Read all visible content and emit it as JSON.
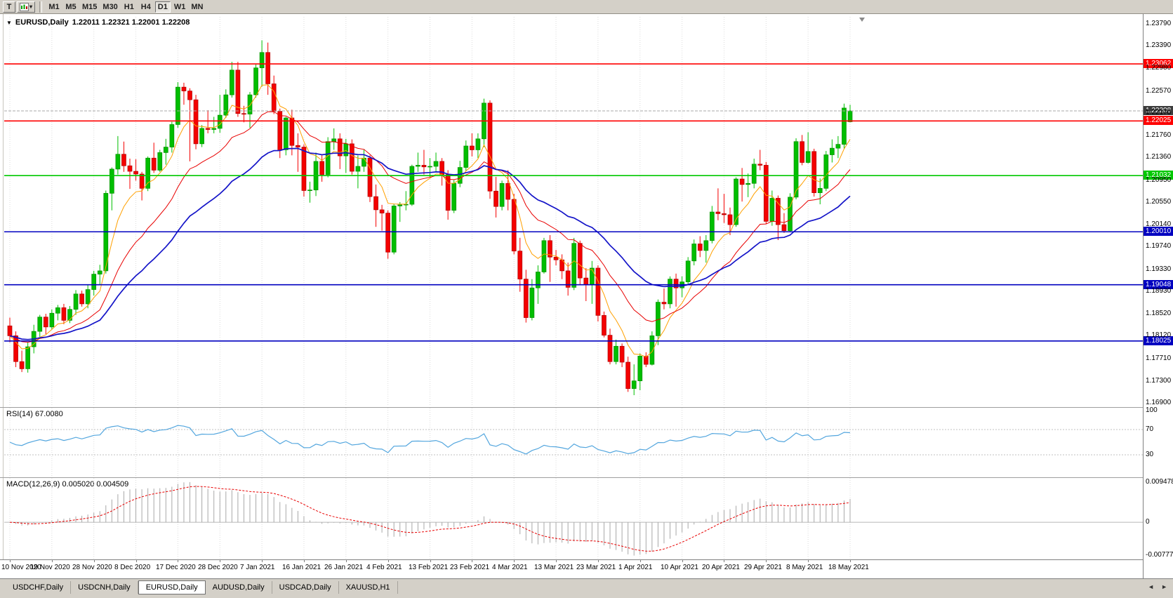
{
  "toolbar": {
    "t_button": "T",
    "template_dropdown_glyph": "▾",
    "timeframes": [
      "M1",
      "M5",
      "M15",
      "M30",
      "H1",
      "H4",
      "D1",
      "W1",
      "MN"
    ],
    "active_timeframe": "D1"
  },
  "chart": {
    "menu_glyph": "▼",
    "title_symbol": "EURUSD,Daily",
    "title_ohlc": "1.22011 1.22321 1.22001 1.22208"
  },
  "chart_data": {
    "type": "candlestick",
    "symbol": "EURUSD",
    "timeframe": "Daily",
    "title": "EURUSD,Daily 1.22011 1.22321 1.22001 1.22208",
    "ohlc_display": {
      "open": "1.22011",
      "high": "1.22321",
      "low": "1.22001",
      "close": "1.22208"
    },
    "price_axis_range": {
      "top": 1.2379,
      "bottom": 1.169
    },
    "price_axis_labels": [
      "1.23790",
      "1.23390",
      "1.22980",
      "1.22570",
      "1.22170",
      "1.21760",
      "1.21360",
      "1.20950",
      "1.20550",
      "1.20140",
      "1.19740",
      "1.19330",
      "1.18930",
      "1.18520",
      "1.18120",
      "1.17710",
      "1.17300",
      "1.16900"
    ],
    "date_labels": [
      "10 Nov 2020",
      "19 Nov 2020",
      "28 Nov 2020",
      "8 Dec 2020",
      "17 Dec 2020",
      "28 Dec 2020",
      "7 Jan 2021",
      "16 Jan 2021",
      "26 Jan 2021",
      "4 Feb 2021",
      "13 Feb 2021",
      "23 Feb 2021",
      "4 Mar 2021",
      "13 Mar 2021",
      "23 Mar 2021",
      "1 Apr 2021",
      "10 Apr 2021",
      "20 Apr 2021",
      "29 Apr 2021",
      "8 May 2021",
      "18 May 2021"
    ],
    "bars_per_label": 7,
    "colors": {
      "candle_up": "#00BE00",
      "candle_up_border": "#089000",
      "candle_down": "#F40000",
      "candle_down_border": "#B00000",
      "grid": "#DCDCDC"
    },
    "candles": [
      [
        1.183,
        1.1845,
        1.18,
        1.1812
      ],
      [
        1.1812,
        1.182,
        1.1755,
        1.1765
      ],
      [
        1.1765,
        1.1785,
        1.1746,
        1.1752
      ],
      [
        1.1752,
        1.18,
        1.1745,
        1.1792
      ],
      [
        1.1792,
        1.1832,
        1.178,
        1.182
      ],
      [
        1.182,
        1.185,
        1.181,
        1.1846
      ],
      [
        1.1846,
        1.1852,
        1.1815,
        1.1828
      ],
      [
        1.1828,
        1.186,
        1.1823,
        1.1853
      ],
      [
        1.1853,
        1.1868,
        1.184,
        1.1863
      ],
      [
        1.1863,
        1.187,
        1.1833,
        1.184
      ],
      [
        1.184,
        1.1866,
        1.1835,
        1.186
      ],
      [
        1.186,
        1.1895,
        1.185,
        1.1888
      ],
      [
        1.1888,
        1.1894,
        1.1865,
        1.187
      ],
      [
        1.187,
        1.1905,
        1.1862,
        1.1896
      ],
      [
        1.1896,
        1.193,
        1.1885,
        1.1924
      ],
      [
        1.1924,
        1.1941,
        1.1905,
        1.193
      ],
      [
        1.193,
        1.2076,
        1.1925,
        1.2071
      ],
      [
        1.2071,
        1.2118,
        1.204,
        1.2115
      ],
      [
        1.2115,
        1.2175,
        1.2105,
        1.2142
      ],
      [
        1.2142,
        1.2165,
        1.211,
        1.2121
      ],
      [
        1.2121,
        1.2134,
        1.2079,
        1.2111
      ],
      [
        1.2111,
        1.2133,
        1.2094,
        1.2106
      ],
      [
        1.2106,
        1.211,
        1.2058,
        1.208
      ],
      [
        1.208,
        1.2138,
        1.2075,
        1.2135
      ],
      [
        1.2135,
        1.2163,
        1.2108,
        1.2113
      ],
      [
        1.2113,
        1.215,
        1.211,
        1.2145
      ],
      [
        1.2145,
        1.217,
        1.2123,
        1.2155
      ],
      [
        1.2155,
        1.2201,
        1.2145,
        1.2196
      ],
      [
        1.2196,
        1.2273,
        1.219,
        1.2264
      ],
      [
        1.2264,
        1.2272,
        1.2232,
        1.2257
      ],
      [
        1.2257,
        1.2262,
        1.2129,
        1.2241
      ],
      [
        1.2241,
        1.225,
        1.2151,
        1.2161
      ],
      [
        1.2161,
        1.2195,
        1.2155,
        1.2189
      ],
      [
        1.2189,
        1.2222,
        1.218,
        1.2187
      ],
      [
        1.2187,
        1.221,
        1.218,
        1.2189
      ],
      [
        1.2189,
        1.225,
        1.2181,
        1.2213
      ],
      [
        1.2213,
        1.226,
        1.2208,
        1.225
      ],
      [
        1.225,
        1.231,
        1.2245,
        1.2295
      ],
      [
        1.2295,
        1.231,
        1.221,
        1.2216
      ],
      [
        1.2216,
        1.223,
        1.22,
        1.2215
      ],
      [
        1.2215,
        1.2255,
        1.219,
        1.225
      ],
      [
        1.225,
        1.2305,
        1.2245,
        1.2299
      ],
      [
        1.2299,
        1.2349,
        1.2265,
        1.2327
      ],
      [
        1.2327,
        1.2345,
        1.225,
        1.227
      ],
      [
        1.227,
        1.2285,
        1.2215,
        1.222
      ],
      [
        1.222,
        1.2225,
        1.2135,
        1.215
      ],
      [
        1.215,
        1.221,
        1.214,
        1.2208
      ],
      [
        1.2208,
        1.2223,
        1.214,
        1.2158
      ],
      [
        1.2158,
        1.218,
        1.211,
        1.2155
      ],
      [
        1.2155,
        1.216,
        1.2065,
        1.2076
      ],
      [
        1.2076,
        1.2092,
        1.2054,
        1.2077
      ],
      [
        1.2077,
        1.2145,
        1.2066,
        1.2129
      ],
      [
        1.2129,
        1.214,
        1.2092,
        1.2105
      ],
      [
        1.2105,
        1.2173,
        1.21,
        1.2165
      ],
      [
        1.2165,
        1.2189,
        1.215,
        1.217
      ],
      [
        1.217,
        1.218,
        1.2115,
        1.2139
      ],
      [
        1.2139,
        1.217,
        1.2108,
        1.2161
      ],
      [
        1.2161,
        1.2169,
        1.2105,
        1.2111
      ],
      [
        1.2111,
        1.214,
        1.208,
        1.212
      ],
      [
        1.212,
        1.215,
        1.211,
        1.2135
      ],
      [
        1.2135,
        1.214,
        1.2055,
        1.2065
      ],
      [
        1.2065,
        1.2087,
        1.201,
        1.2041
      ],
      [
        1.2041,
        1.205,
        1.2003,
        1.2035
      ],
      [
        1.2035,
        1.204,
        1.1952,
        1.1964
      ],
      [
        1.1964,
        1.2052,
        1.196,
        1.2048
      ],
      [
        1.2048,
        1.2055,
        1.2019,
        1.205
      ],
      [
        1.205,
        1.2075,
        1.204,
        1.2051
      ],
      [
        1.2051,
        1.2123,
        1.2048,
        1.212
      ],
      [
        1.212,
        1.2145,
        1.211,
        1.2122
      ],
      [
        1.2122,
        1.215,
        1.2105,
        1.2119
      ],
      [
        1.2119,
        1.2135,
        1.21,
        1.212
      ],
      [
        1.212,
        1.2145,
        1.211,
        1.2129
      ],
      [
        1.2129,
        1.2135,
        1.2085,
        1.2105
      ],
      [
        1.2105,
        1.2113,
        1.2023,
        1.204
      ],
      [
        1.204,
        1.2095,
        1.2035,
        1.2089
      ],
      [
        1.2089,
        1.213,
        1.2082,
        1.2118
      ],
      [
        1.2118,
        1.2167,
        1.2112,
        1.2157
      ],
      [
        1.2157,
        1.218,
        1.2138,
        1.215
      ],
      [
        1.215,
        1.218,
        1.2135,
        1.217
      ],
      [
        1.217,
        1.2243,
        1.2155,
        1.2235
      ],
      [
        1.2235,
        1.224,
        1.2061,
        1.2075
      ],
      [
        1.2075,
        1.2101,
        1.2027,
        1.2047
      ],
      [
        1.2047,
        1.2094,
        1.204,
        1.2089
      ],
      [
        1.2089,
        1.2113,
        1.204,
        1.206
      ],
      [
        1.206,
        1.207,
        1.196,
        1.1966
      ],
      [
        1.1966,
        1.199,
        1.1892,
        1.1915
      ],
      [
        1.1915,
        1.1932,
        1.1836,
        1.1845
      ],
      [
        1.1845,
        1.1915,
        1.184,
        1.1899
      ],
      [
        1.1899,
        1.194,
        1.187,
        1.1928
      ],
      [
        1.1928,
        1.199,
        1.1925,
        1.1985
      ],
      [
        1.1985,
        1.1995,
        1.191,
        1.1955
      ],
      [
        1.1955,
        1.1968,
        1.194,
        1.195
      ],
      [
        1.195,
        1.196,
        1.1915,
        1.193
      ],
      [
        1.193,
        1.1945,
        1.1885,
        1.19
      ],
      [
        1.19,
        1.199,
        1.1895,
        1.198
      ],
      [
        1.198,
        1.1985,
        1.1905,
        1.1917
      ],
      [
        1.1917,
        1.1935,
        1.1875,
        1.1905
      ],
      [
        1.1905,
        1.1948,
        1.187,
        1.1935
      ],
      [
        1.1935,
        1.194,
        1.1838,
        1.1849
      ],
      [
        1.1849,
        1.1856,
        1.1809,
        1.1813
      ],
      [
        1.1813,
        1.1825,
        1.176,
        1.1765
      ],
      [
        1.1765,
        1.1805,
        1.176,
        1.1793
      ],
      [
        1.1793,
        1.1798,
        1.1755,
        1.1764
      ],
      [
        1.1764,
        1.1774,
        1.171,
        1.1716
      ],
      [
        1.1716,
        1.176,
        1.1704,
        1.173
      ],
      [
        1.173,
        1.178,
        1.1713,
        1.1775
      ],
      [
        1.1775,
        1.1782,
        1.1755,
        1.176
      ],
      [
        1.176,
        1.182,
        1.1758,
        1.1812
      ],
      [
        1.1812,
        1.1878,
        1.1795,
        1.1873
      ],
      [
        1.1873,
        1.1898,
        1.186,
        1.187
      ],
      [
        1.187,
        1.192,
        1.1862,
        1.1915
      ],
      [
        1.1915,
        1.1925,
        1.1865,
        1.1899
      ],
      [
        1.1899,
        1.192,
        1.1882,
        1.191
      ],
      [
        1.191,
        1.1955,
        1.1905,
        1.1948
      ],
      [
        1.1948,
        1.1987,
        1.194,
        1.1979
      ],
      [
        1.1979,
        1.1993,
        1.1955,
        1.1967
      ],
      [
        1.1967,
        1.1995,
        1.1945,
        1.1985
      ],
      [
        1.1985,
        1.2048,
        1.198,
        1.2037
      ],
      [
        1.2037,
        1.208,
        1.2022,
        1.2034
      ],
      [
        1.2034,
        1.207,
        1.2017,
        1.2032
      ],
      [
        1.2032,
        1.2045,
        1.1995,
        1.2014
      ],
      [
        1.2014,
        1.21,
        1.201,
        1.2097
      ],
      [
        1.2097,
        1.2117,
        1.2056,
        1.2087
      ],
      [
        1.2087,
        1.2107,
        1.2064,
        1.2089
      ],
      [
        1.2089,
        1.2134,
        1.208,
        1.2124
      ],
      [
        1.2124,
        1.215,
        1.2113,
        1.2122
      ],
      [
        1.2122,
        1.2128,
        1.2015,
        1.202
      ],
      [
        1.202,
        1.2076,
        1.2012,
        1.2062
      ],
      [
        1.2062,
        1.2067,
        1.1986,
        1.2014
      ],
      [
        1.2014,
        1.2035,
        1.1999,
        1.2003
      ],
      [
        1.2003,
        1.2071,
        1.2,
        1.2064
      ],
      [
        1.2064,
        1.2171,
        1.206,
        1.2165
      ],
      [
        1.2165,
        1.2177,
        1.2122,
        1.2127
      ],
      [
        1.2127,
        1.2182,
        1.2125,
        1.2147
      ],
      [
        1.2147,
        1.2152,
        1.2065,
        1.2072
      ],
      [
        1.2072,
        1.2098,
        1.2051,
        1.208
      ],
      [
        1.208,
        1.2148,
        1.2075,
        1.2141
      ],
      [
        1.2141,
        1.2169,
        1.2127,
        1.2153
      ],
      [
        1.2153,
        1.2175,
        1.2135,
        1.216
      ],
      [
        1.216,
        1.2234,
        1.2152,
        1.2226
      ],
      [
        1.2201,
        1.2232,
        1.22,
        1.2221
      ]
    ],
    "moving_averages": [
      {
        "name": "fast-ma",
        "period": 7,
        "color": "#FFA000",
        "width": 1
      },
      {
        "name": "medium-ma",
        "period": 18,
        "color": "#E80000",
        "width": 1
      },
      {
        "name": "slow-ma",
        "period": 34,
        "color": "#1414C8",
        "width": 1.7
      }
    ],
    "horizontal_lines": [
      {
        "price": 1.23062,
        "label": "1.23062",
        "color": "#FF0000"
      },
      {
        "price": 1.22025,
        "label": "1.22025",
        "color": "#FF0000"
      },
      {
        "price": 1.21032,
        "label": "1.21032",
        "color": "#00C800"
      },
      {
        "price": 1.2001,
        "label": "1.20010",
        "color": "#0000C0"
      },
      {
        "price": 1.19048,
        "label": "1.19048",
        "color": "#0000C0"
      },
      {
        "price": 1.18025,
        "label": "1.18025",
        "color": "#0000C0"
      }
    ],
    "current_price": {
      "value": 1.22208,
      "label": "1.22208",
      "badge_color": "#3C3C3C"
    },
    "rsi": {
      "label": "RSI(14) 67.0080",
      "period": 14,
      "value_display": "67.0080",
      "levels": [
        70,
        30
      ],
      "axis_labels": [
        "100",
        "70",
        "30"
      ],
      "color": "#53A6DE"
    },
    "macd": {
      "label": "MACD(12,26,9) 0.005020 0.004509",
      "fast": 12,
      "slow": 26,
      "signal": 9,
      "value_display": "0.005020 0.004509",
      "axis_labels": [
        "0.009478",
        "0",
        "-0.007776"
      ],
      "axis_max": 0.009478,
      "axis_min": -0.007776,
      "histogram_color": "#A8A8A8",
      "signal_color": "#E80000"
    }
  },
  "bottom_tabs": {
    "tabs": [
      {
        "label": "USDCHF,Daily"
      },
      {
        "label": "USDCNH,Daily"
      },
      {
        "label": "EURUSD,Daily"
      },
      {
        "label": "AUDUSD,Daily"
      },
      {
        "label": "USDCAD,Daily"
      },
      {
        "label": "XAUUSD,H1"
      }
    ],
    "active": "EURUSD,Daily",
    "scroll_left_glyph": "◄",
    "scroll_right_glyph": "►"
  }
}
